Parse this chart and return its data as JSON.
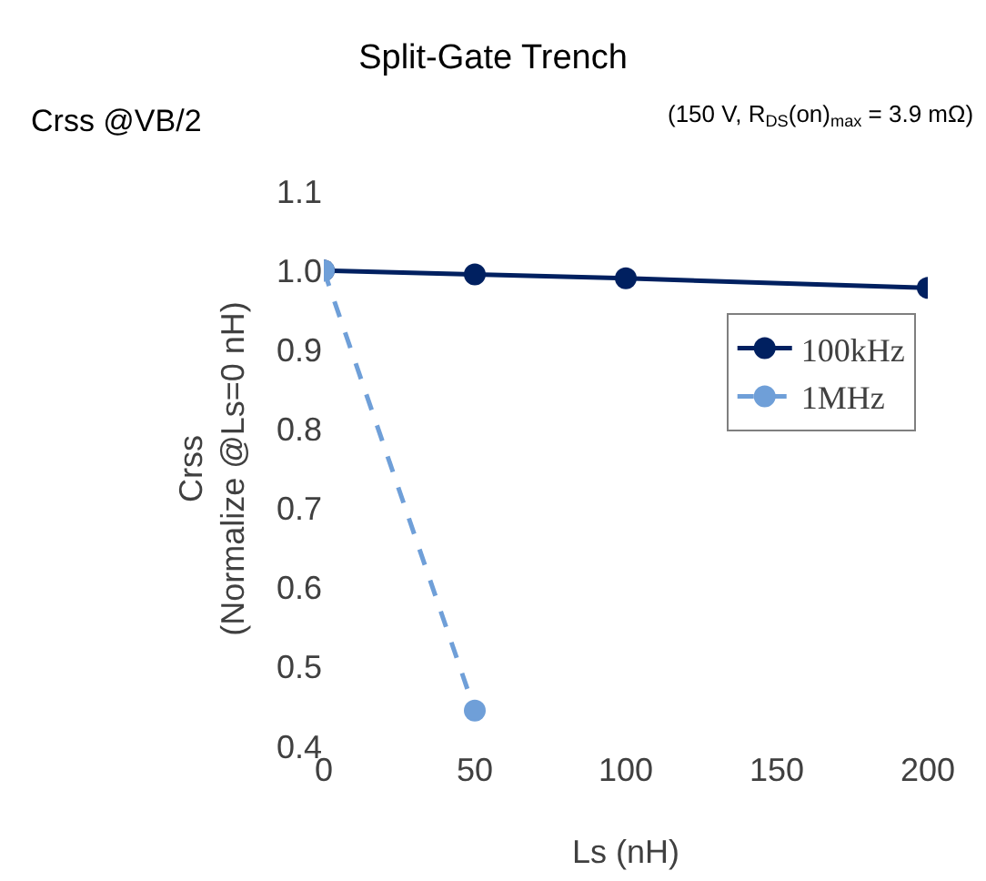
{
  "chart_data": {
    "type": "line",
    "title": "Split-Gate Trench",
    "subtitle": "(150 V, R$_{DS}$(on)$_{max}$ = 3.9 mΩ)",
    "xlabel": "Ls (nH)",
    "ylabel": "Crss\n(Normalize @Ls=0 nH)",
    "annotations": [
      "Crss @VB/2"
    ],
    "series": [
      {
        "name": "100kHz",
        "color": "#002060",
        "x": [
          0,
          50,
          100,
          200
        ],
        "values": [
          1.0,
          0.995,
          0.99,
          0.978
        ],
        "line_style": "solid"
      },
      {
        "name": "1MHz",
        "color": "#6f9fd8",
        "x": [
          0,
          50
        ],
        "values": [
          1.0,
          0.445
        ],
        "line_style": "dashed"
      }
    ],
    "xlim": [
      0,
      200
    ],
    "xticks": [
      0,
      50,
      100,
      150,
      200
    ],
    "ylim": [
      0.4,
      1.1
    ],
    "yticks": [
      {
        "value": 0.4,
        "label": "0.4"
      },
      {
        "value": 0.5,
        "label": "0.5"
      },
      {
        "value": 0.6,
        "label": "0.6"
      },
      {
        "value": 0.7,
        "label": "0.7"
      },
      {
        "value": 0.8,
        "label": "0.8"
      },
      {
        "value": 0.9,
        "label": "0.9"
      },
      {
        "value": 1.0,
        "label": "1.0"
      },
      {
        "value": 1.1,
        "label": "1.1"
      }
    ],
    "grid": false,
    "legend": "right",
    "marker": "circle"
  }
}
